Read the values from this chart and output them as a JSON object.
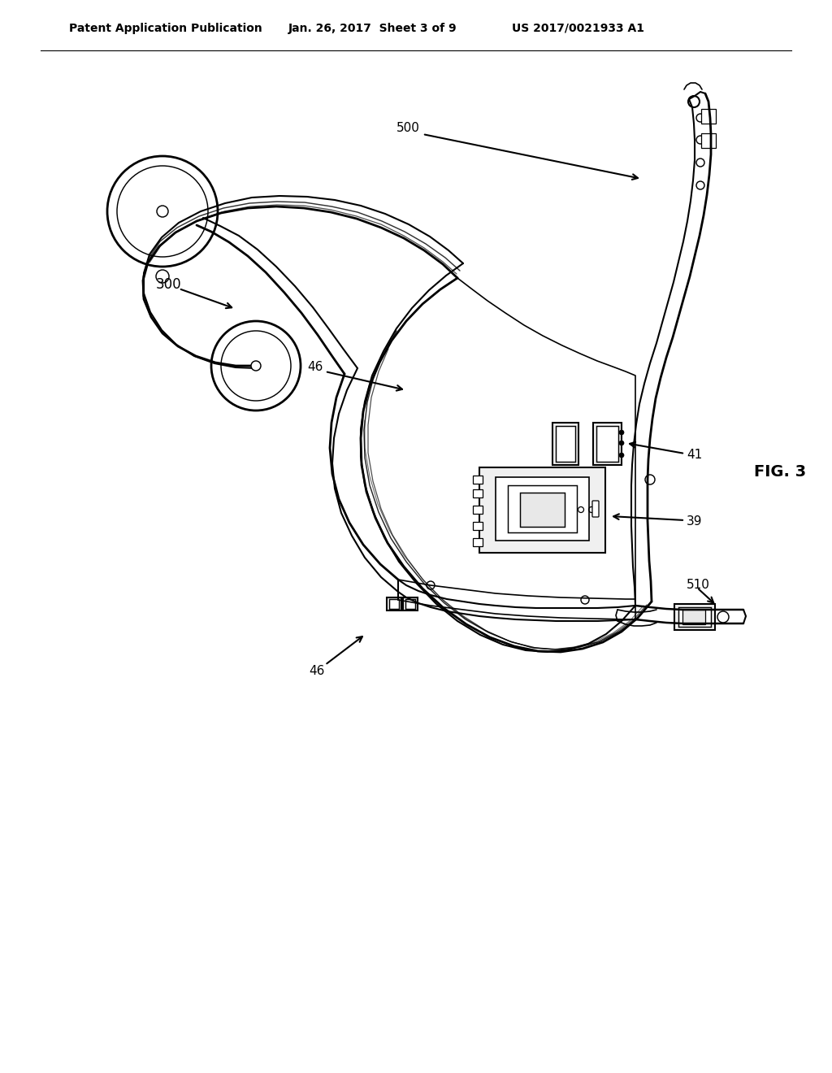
{
  "background_color": "#ffffff",
  "header_left": "Patent Application Publication",
  "header_center": "Jan. 26, 2017  Sheet 3 of 9",
  "header_right": "US 2017/0021933 A1",
  "fig_label": "FIG. 3",
  "label_300": "300",
  "label_46_top": "46",
  "label_46_bot": "46",
  "label_500": "500",
  "label_41": "41",
  "label_39": "39",
  "label_510": "510",
  "line_color": "#000000",
  "line_width": 1.5,
  "fig_label_fontsize": 14,
  "header_fontsize": 10,
  "annotation_fontsize": 11
}
